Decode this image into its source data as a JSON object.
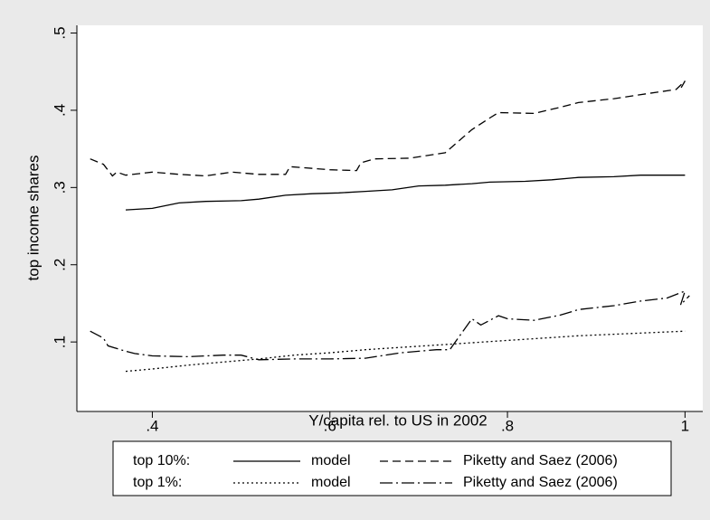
{
  "chart_data": {
    "type": "line",
    "x_label": "Y/capita rel. to US in 2002",
    "y_label": "top income shares",
    "xlim": [
      0.315,
      1.02
    ],
    "ylim": [
      0.01,
      0.51
    ],
    "xticks": [
      {
        "value": 0.4,
        "label": ".4"
      },
      {
        "value": 0.6,
        "label": ".6"
      },
      {
        "value": 0.8,
        "label": ".8"
      },
      1
    ],
    "yticks": [
      {
        "value": 0.1,
        "label": ".1"
      },
      {
        "value": 0.2,
        "label": ".2"
      },
      {
        "value": 0.3,
        "label": ".3"
      },
      {
        "value": 0.4,
        "label": ".4"
      },
      {
        "value": 0.5,
        "label": ".5"
      }
    ],
    "legend_rows": [
      "top 10%:",
      "top 1%:"
    ],
    "series": [
      {
        "name": "model",
        "color": "#000000",
        "dash": "solid",
        "x": [
          0.37,
          0.4,
          0.43,
          0.46,
          0.5,
          0.52,
          0.55,
          0.58,
          0.61,
          0.64,
          0.67,
          0.7,
          0.73,
          0.76,
          0.78,
          0.82,
          0.85,
          0.88,
          0.92,
          0.95,
          1.0
        ],
        "values": [
          0.271,
          0.273,
          0.28,
          0.282,
          0.283,
          0.285,
          0.29,
          0.292,
          0.293,
          0.295,
          0.297,
          0.302,
          0.303,
          0.305,
          0.307,
          0.308,
          0.31,
          0.313,
          0.314,
          0.316,
          0.316
        ]
      },
      {
        "name": "Piketty and Saez (2006)",
        "color": "#000000",
        "dash": "dashed",
        "x": [
          0.33,
          0.345,
          0.355,
          0.36,
          0.37,
          0.4,
          0.43,
          0.46,
          0.49,
          0.52,
          0.55,
          0.555,
          0.6,
          0.63,
          0.635,
          0.65,
          0.69,
          0.73,
          0.76,
          0.78,
          0.79,
          0.83,
          0.86,
          0.88,
          0.92,
          0.96,
          0.99,
          1.0,
          0.995
        ],
        "values": [
          0.337,
          0.33,
          0.315,
          0.32,
          0.316,
          0.32,
          0.317,
          0.315,
          0.32,
          0.317,
          0.317,
          0.327,
          0.323,
          0.322,
          0.332,
          0.337,
          0.338,
          0.345,
          0.375,
          0.39,
          0.397,
          0.396,
          0.404,
          0.41,
          0.415,
          0.422,
          0.427,
          0.438,
          0.428
        ]
      },
      {
        "name": "model",
        "color": "#000000",
        "dash": "dotted",
        "x": [
          0.37,
          0.4,
          0.44,
          0.48,
          0.52,
          0.56,
          0.6,
          0.64,
          0.68,
          0.72,
          0.76,
          0.8,
          0.84,
          0.88,
          0.92,
          0.96,
          1.0
        ],
        "values": [
          0.062,
          0.065,
          0.07,
          0.074,
          0.078,
          0.083,
          0.086,
          0.09,
          0.093,
          0.096,
          0.099,
          0.102,
          0.105,
          0.108,
          0.11,
          0.112,
          0.114
        ]
      },
      {
        "name": "Piketty and Saez (2006)",
        "color": "#000000",
        "dash": "dashdot",
        "x": [
          0.33,
          0.345,
          0.35,
          0.37,
          0.38,
          0.4,
          0.44,
          0.48,
          0.5,
          0.52,
          0.56,
          0.6,
          0.64,
          0.68,
          0.72,
          0.735,
          0.76,
          0.77,
          0.79,
          0.8,
          0.83,
          0.86,
          0.88,
          0.92,
          0.95,
          0.98,
          1.0,
          0.995,
          1.005
        ],
        "values": [
          0.114,
          0.105,
          0.095,
          0.088,
          0.085,
          0.082,
          0.081,
          0.083,
          0.083,
          0.077,
          0.078,
          0.078,
          0.079,
          0.086,
          0.09,
          0.09,
          0.13,
          0.122,
          0.134,
          0.13,
          0.128,
          0.135,
          0.142,
          0.147,
          0.153,
          0.157,
          0.166,
          0.148,
          0.16
        ]
      }
    ]
  }
}
